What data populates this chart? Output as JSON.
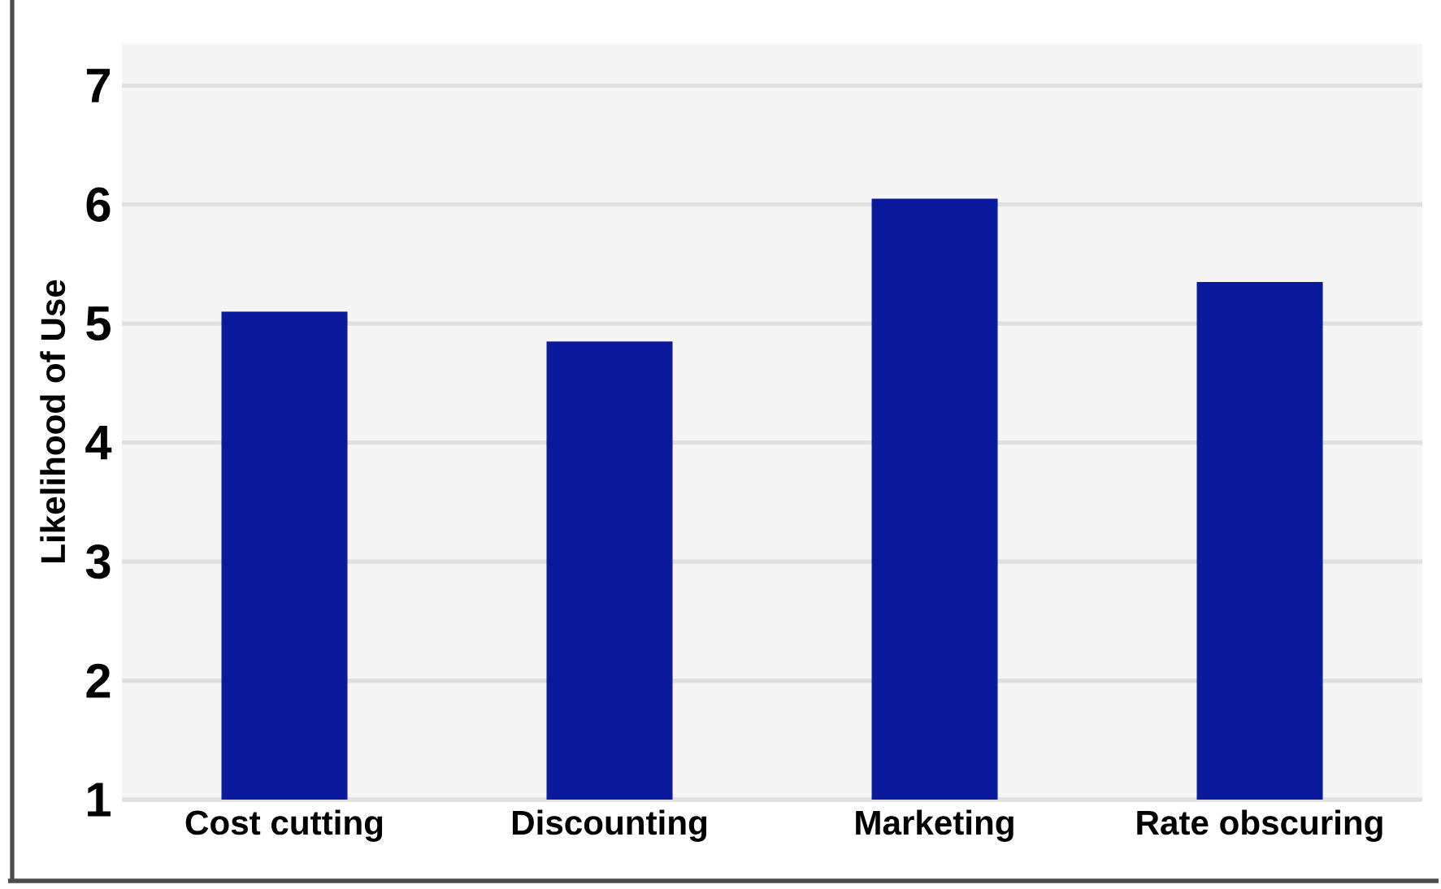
{
  "chart_data": {
    "type": "bar",
    "ylabel": "Likelihood of Use",
    "categories": [
      "Cost cutting",
      "Discounting",
      "Marketing",
      "Rate obscuring"
    ],
    "values": [
      5.1,
      4.85,
      6.05,
      5.35
    ],
    "color": "#0b1a9c",
    "ylim": [
      1,
      7.35
    ],
    "yticks": [
      1,
      2,
      3,
      4,
      5,
      6,
      7
    ],
    "grid": "y"
  }
}
